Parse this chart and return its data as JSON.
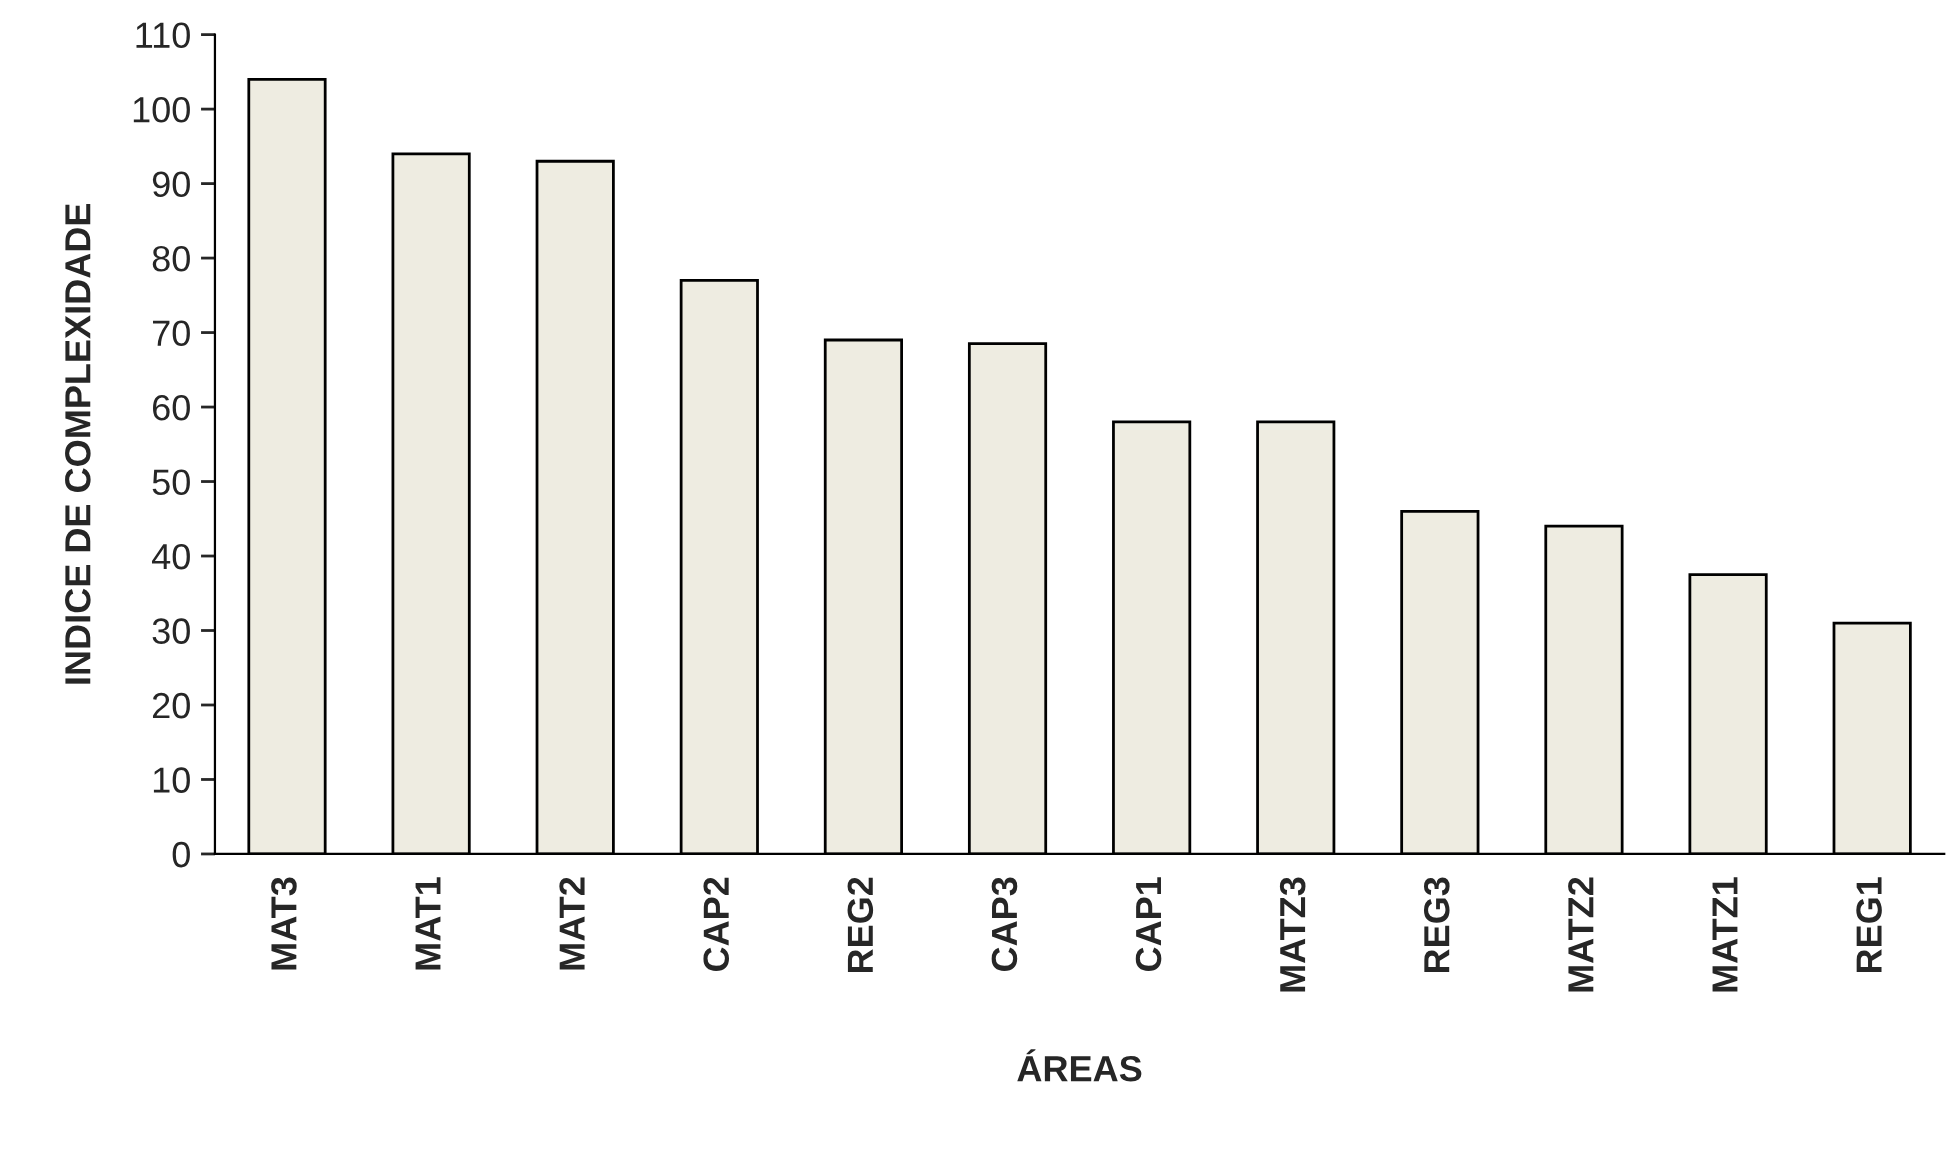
{
  "chart_data": {
    "type": "bar",
    "xlabel": "ÁREAS",
    "ylabel": "INDICE DE COMPLEXIDADE",
    "categories": [
      "MAT3",
      "MAT1",
      "MAT2",
      "CAP2",
      "REG2",
      "CAP3",
      "CAP1",
      "MATZ3",
      "REG3",
      "MATZ2",
      "MATZ1",
      "REG1"
    ],
    "values": [
      104,
      94,
      93,
      77,
      69,
      68.5,
      58,
      58,
      46,
      44,
      37.5,
      31
    ],
    "color": "#eeece1",
    "ylim": [
      0,
      110
    ],
    "yticks": [
      0,
      10,
      20,
      30,
      40,
      50,
      60,
      70,
      80,
      90,
      100,
      110
    ],
    "grid": false
  }
}
